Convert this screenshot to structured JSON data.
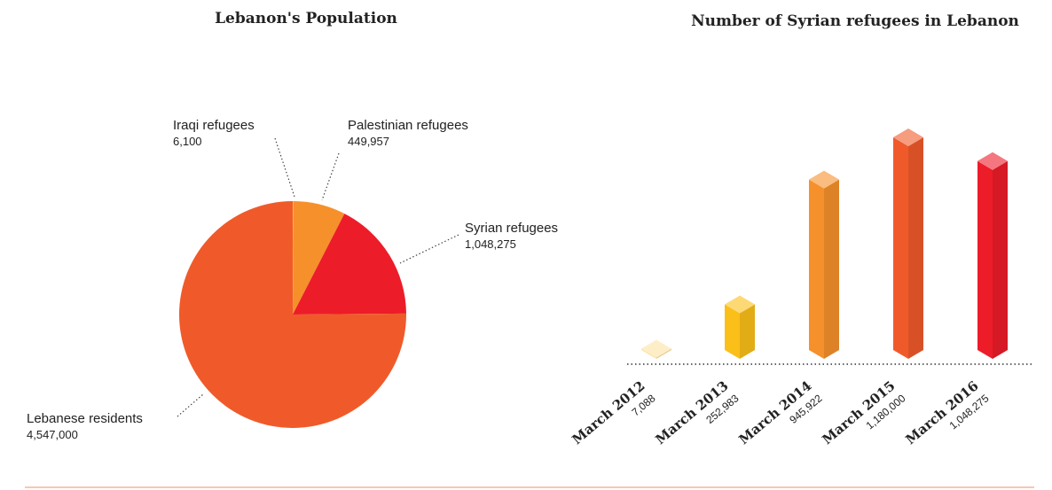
{
  "colors": {
    "iraqi": "#fbbf28",
    "palestinian": "#f6902a",
    "syrian": "#ed1c29",
    "lebanese": "#f05a2a",
    "footer_rule": "#f7b49c"
  },
  "chart_data": [
    {
      "type": "pie",
      "title": "Lebanon's Population",
      "slices": [
        {
          "label": "Iraqi refugees",
          "value": 6100,
          "value_label": "6,100",
          "color": "#fbbf28"
        },
        {
          "label": "Palestinian refugees",
          "value": 449957,
          "value_label": "449,957",
          "color": "#f6902a"
        },
        {
          "label": "Syrian refugees",
          "value": 1048275,
          "value_label": "1,048,275",
          "color": "#ed1c29"
        },
        {
          "label": "Lebanese residents",
          "value": 4547000,
          "value_label": "4,547,000",
          "color": "#f05a2a"
        }
      ]
    },
    {
      "type": "bar",
      "title": "Number of Syrian refugees in Lebanon",
      "categories": [
        "March 2012",
        "March 2013",
        "March 2014",
        "March 2015",
        "March 2016"
      ],
      "values": [
        7088,
        252983,
        945922,
        1180000,
        1048275
      ],
      "value_labels": [
        "7,088",
        "252,983",
        "945,922",
        "1,180,000",
        "1,048,275"
      ],
      "colors": [
        "#fde3a4",
        "#fbbf1a",
        "#f6902a",
        "#f05a2a",
        "#ed1c29"
      ],
      "ylim": [
        0,
        1180000
      ],
      "legend": "none",
      "grid": false
    }
  ]
}
